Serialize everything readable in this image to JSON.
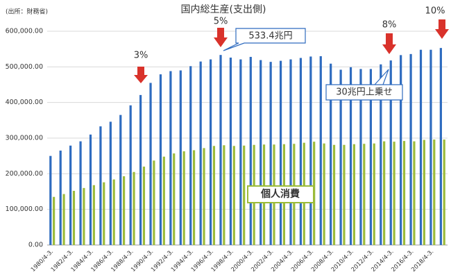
{
  "chart_data": {
    "type": "bar",
    "title": "国内総生産(支出側)",
    "source": "(出所：財務省)",
    "categories": [
      "1980/4-3.",
      null,
      "1982/4-3.",
      null,
      "1984/4-3.",
      null,
      "1986/4-3.",
      null,
      "1988/4-3.",
      null,
      "1990/4-3.",
      null,
      "1992/4-3.",
      null,
      "1994/4-3.",
      null,
      "1996/4-3.",
      null,
      "1998/4-3.",
      null,
      "2000/4-3.",
      null,
      "2002/4-3.",
      null,
      "2004/4-3.",
      null,
      "2006/4-3.",
      null,
      "2008/4-3.",
      null,
      "2010/4-3.",
      null,
      "2012/4-3.",
      null,
      "2014/4-3.",
      null,
      "2016/4-3.",
      null,
      "2018/4-3.",
      null
    ],
    "series": [
      {
        "color": "#2e6bbf",
        "values": [
          250000,
          265000,
          279000,
          291000,
          310000,
          333000,
          346000,
          365000,
          392000,
          421000,
          455000,
          479000,
          488000,
          490000,
          502000,
          515000,
          521000,
          533400,
          526000,
          521000,
          528000,
          519000,
          514000,
          517000,
          521000,
          525000,
          529000,
          530000,
          509000,
          492000,
          499000,
          494000,
          494000,
          507000,
          518000,
          533000,
          536000,
          548000,
          548000,
          553000
        ]
      },
      {
        "color": "#9bbb3a",
        "values": [
          135000,
          143000,
          152000,
          160000,
          168000,
          176000,
          184000,
          193000,
          205000,
          220000,
          237000,
          248000,
          257000,
          263000,
          266000,
          272000,
          278000,
          280000,
          278000,
          279000,
          281000,
          282000,
          282000,
          283000,
          284000,
          287000,
          290000,
          285000,
          281000,
          281000,
          283000,
          284000,
          285000,
          291000,
          290000,
          292000,
          291000,
          295000,
          296000,
          296000
        ]
      }
    ],
    "ylim": [
      0,
      600000
    ],
    "yticks": [
      {
        "value": 0,
        "label": "0.00"
      },
      {
        "value": 100000,
        "label": "100,000.00"
      },
      {
        "value": 200000,
        "label": "200,000.00"
      },
      {
        "value": 300000,
        "label": "300,000.00"
      },
      {
        "value": 400000,
        "label": "400,000.00"
      },
      {
        "value": 500000,
        "label": "500,000.00"
      },
      {
        "value": 600000,
        "label": "600,000.00"
      }
    ],
    "grid": true,
    "annotations": [
      "3%",
      "5%",
      "8%",
      "10%",
      "533.4兆円",
      "30兆円上乗せ",
      "個人消費"
    ]
  }
}
